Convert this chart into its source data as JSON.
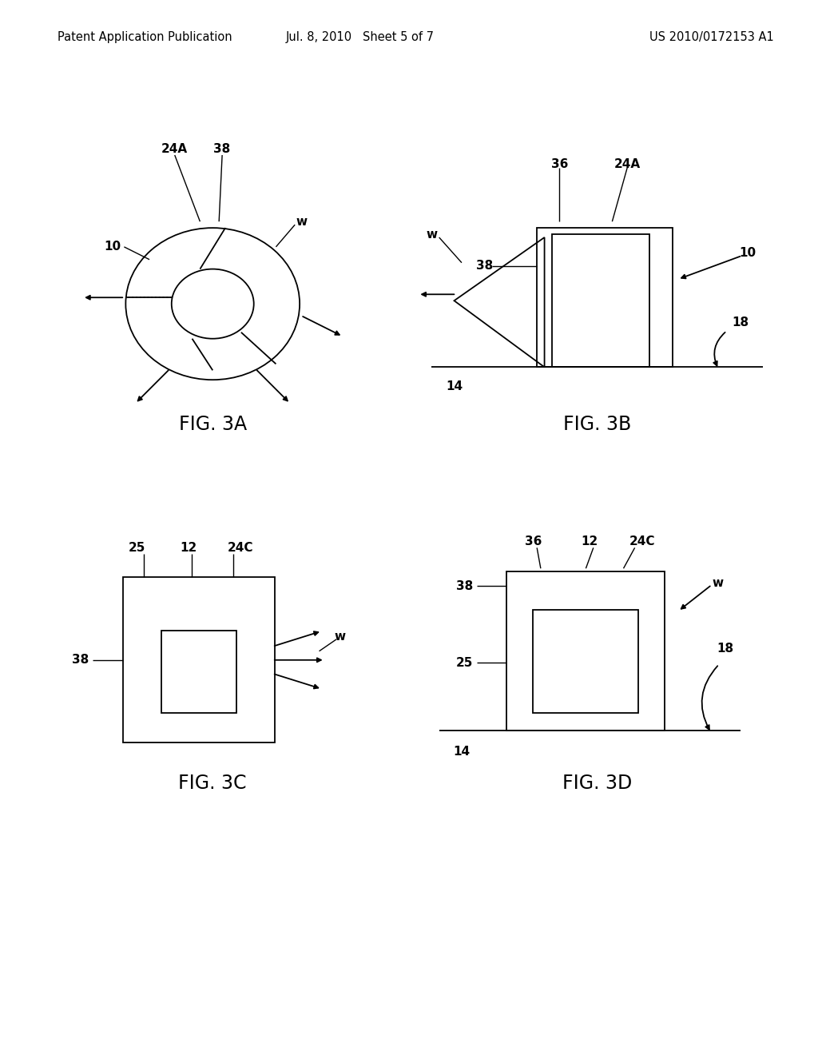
{
  "background_color": "#ffffff",
  "header_left": "Patent Application Publication",
  "header_mid": "Jul. 8, 2010   Sheet 5 of 7",
  "header_right": "US 2010/0172153 A1",
  "header_fontsize": 10.5,
  "fig_label_fontsize": 17,
  "annotation_fontsize": 11,
  "line_color": "#000000",
  "fig3a_label": "FIG. 3A",
  "fig3b_label": "FIG. 3B",
  "fig3c_label": "FIG. 3C",
  "fig3d_label": "FIG. 3D"
}
